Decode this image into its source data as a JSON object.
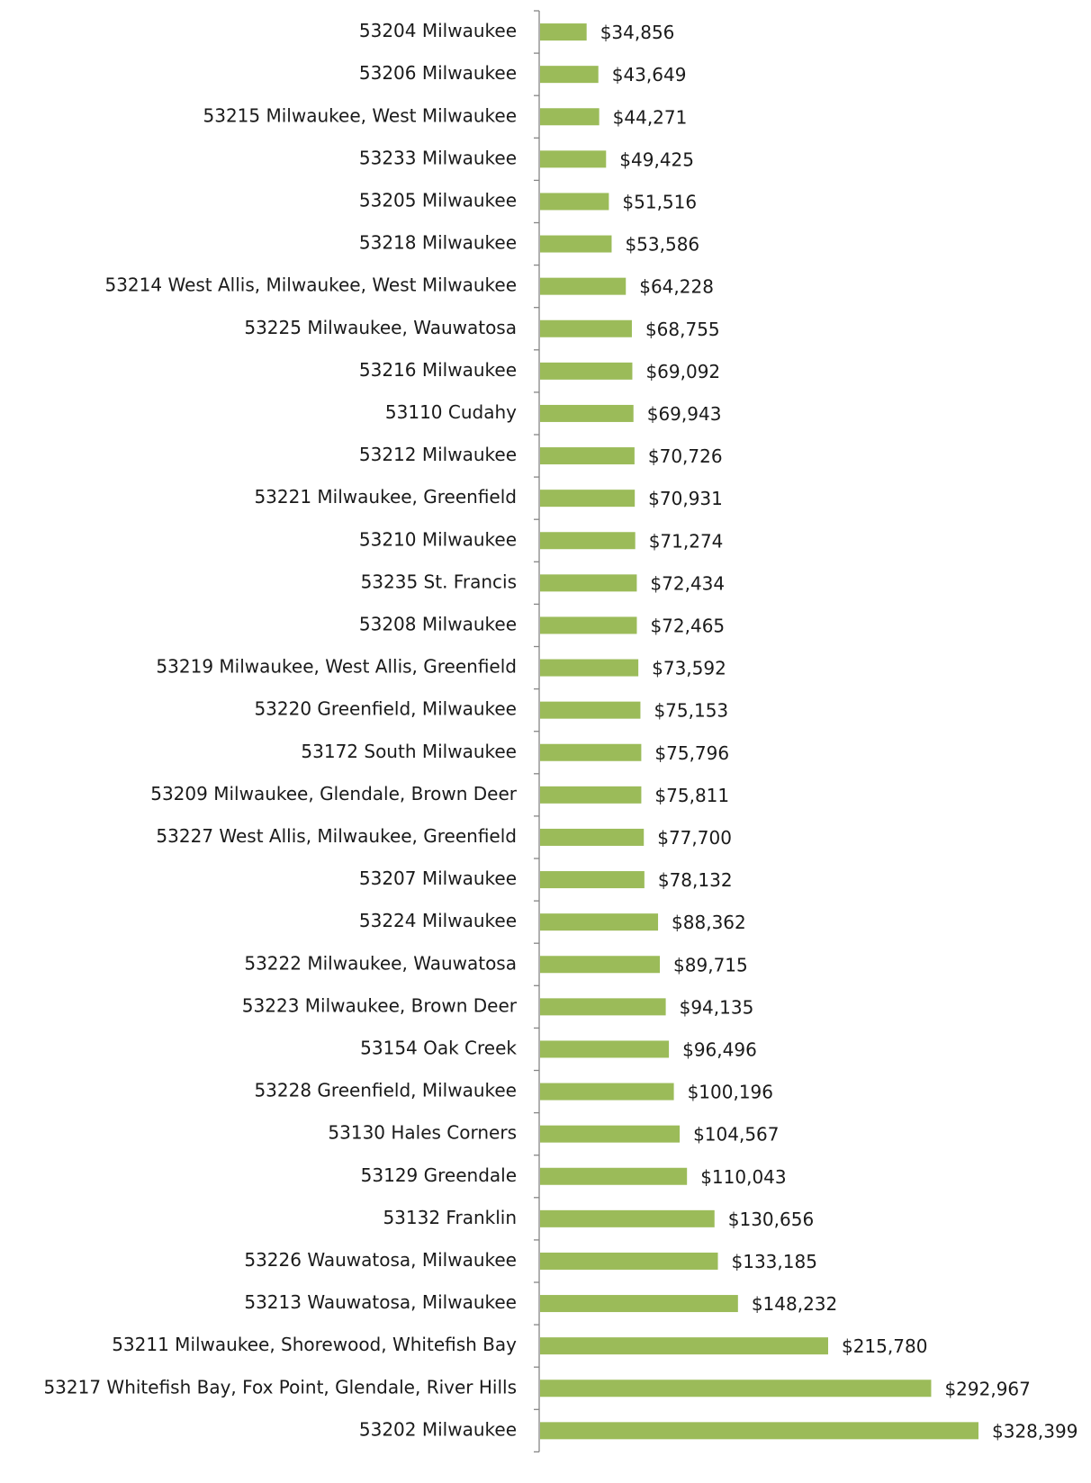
{
  "chart_data": {
    "type": "bar",
    "orientation": "horizontal",
    "color": "#9bbb59",
    "categories": [
      "53204 Milwaukee",
      "53206 Milwaukee",
      "53215 Milwaukee, West Milwaukee",
      "53233 Milwaukee",
      "53205 Milwaukee",
      "53218 Milwaukee",
      "53214 West Allis, Milwaukee, West Milwaukee",
      "53225 Milwaukee, Wauwatosa",
      "53216 Milwaukee",
      "53110 Cudahy",
      "53212 Milwaukee",
      "53221 Milwaukee, Greenfield",
      "53210 Milwaukee",
      "53235 St. Francis",
      "53208 Milwaukee",
      "53219 Milwaukee, West Allis, Greenfield",
      "53220 Greenfield, Milwaukee",
      "53172 South Milwaukee",
      "53209 Milwaukee, Glendale, Brown Deer",
      "53227 West Allis, Milwaukee, Greenfield",
      "53207 Milwaukee",
      "53224 Milwaukee",
      "53222 Milwaukee, Wauwatosa",
      "53223 Milwaukee, Brown Deer",
      "53154 Oak Creek",
      "53228 Greenfield, Milwaukee",
      "53130 Hales Corners",
      "53129 Greendale",
      "53132 Franklin",
      "53226 Wauwatosa, Milwaukee",
      "53213 Wauwatosa, Milwaukee",
      "53211 Milwaukee, Shorewood, Whitefish Bay",
      "53217 Whitefish Bay, Fox Point, Glendale, River Hills",
      "53202 Milwaukee"
    ],
    "values": [
      34856,
      43649,
      44271,
      49425,
      51516,
      53586,
      64228,
      68755,
      69092,
      69943,
      70726,
      70931,
      71274,
      72434,
      72465,
      73592,
      75153,
      75796,
      75811,
      77700,
      78132,
      88362,
      89715,
      94135,
      96496,
      100196,
      104567,
      110043,
      130656,
      133185,
      148232,
      215780,
      292967,
      328399
    ],
    "value_labels": [
      "$34,856",
      "$43,649",
      "$44,271",
      "$49,425",
      "$51,516",
      "$53,586",
      "$64,228",
      "$68,755",
      "$69,092",
      "$69,943",
      "$70,726",
      "$70,931",
      "$71,274",
      "$72,434",
      "$72,465",
      "$73,592",
      "$75,153",
      "$75,796",
      "$75,811",
      "$77,700",
      "$78,132",
      "$88,362",
      "$89,715",
      "$94,135",
      "$96,496",
      "$100,196",
      "$104,567",
      "$110,043",
      "$130,656",
      "$133,185",
      "$148,232",
      "$215,780",
      "$292,967",
      "$328,399"
    ]
  }
}
